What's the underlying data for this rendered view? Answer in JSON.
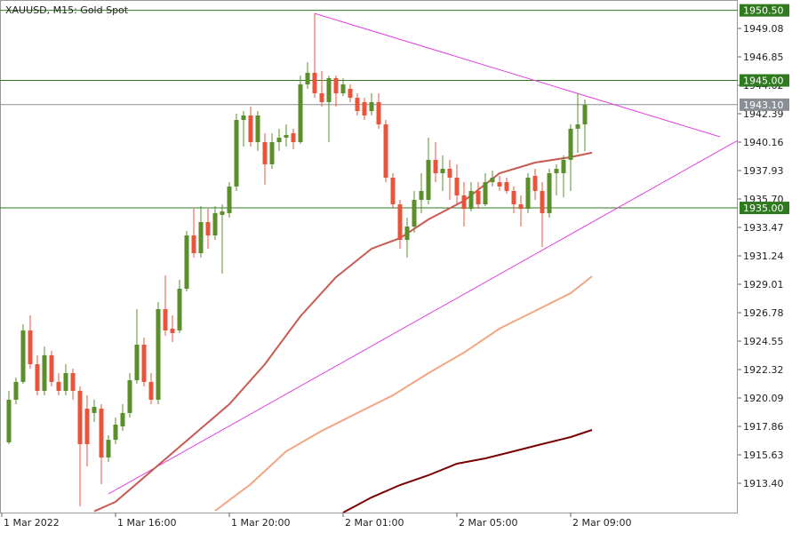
{
  "chart_data": {
    "type": "candlestick",
    "title": "XAUUSD, M15:  Gold Spot",
    "xlim": [
      -1.25,
      102.5
    ],
    "ylim": [
      1911.1,
      1951.31
    ],
    "xticks": [
      {
        "value": -1,
        "label": "1 Mar 2022"
      },
      {
        "value": 15,
        "label": "1 Mar 16:00"
      },
      {
        "value": 31,
        "label": "1 Mar 20:00"
      },
      {
        "value": 47,
        "label": "2 Mar 01:00"
      },
      {
        "value": 63,
        "label": "2 Mar 05:00"
      },
      {
        "value": 79,
        "label": "2 Mar 09:00"
      }
    ],
    "yticks": [
      1949.08,
      1946.85,
      1944.62,
      1942.39,
      1940.16,
      1937.93,
      {
        "value": 1935.7,
        "label": "1935.70"
      },
      1933.47,
      1931.24,
      1929.01,
      1926.78,
      1924.55,
      1922.32,
      1920.09,
      1917.86,
      1915.63,
      {
        "value": 1913.4,
        "label": "1913.40"
      }
    ],
    "up_color": "#5a8f29",
    "down_color": "#e8543a",
    "candles": [
      [
        1916.61,
        1920.65,
        1916.47,
        1919.95
      ],
      [
        1919.95,
        1921.69,
        1919.6,
        1921.35
      ],
      [
        1921.35,
        1925.88,
        1921.2,
        1925.39
      ],
      [
        1925.39,
        1926.57,
        1922.39,
        1922.74
      ],
      [
        1922.74,
        1923.44,
        1920.3,
        1920.65
      ],
      [
        1920.65,
        1924.13,
        1920.3,
        1923.44
      ],
      [
        1923.44,
        1923.79,
        1921.0,
        1921.35
      ],
      [
        1921.35,
        1922.04,
        1920.3,
        1920.65
      ],
      [
        1920.65,
        1922.74,
        1920.3,
        1922.04
      ],
      [
        1922.04,
        1922.39,
        1919.95,
        1920.65
      ],
      [
        1920.65,
        1921.0,
        1911.59,
        1916.47
      ],
      [
        1919.25,
        1920.3,
        1914.72,
        1916.47
      ],
      [
        1918.91,
        1919.95,
        1918.21,
        1919.39
      ],
      [
        1919.25,
        1919.6,
        1913.33,
        1915.42
      ],
      [
        1915.42,
        1917.16,
        1915.07,
        1916.81
      ],
      [
        1916.81,
        1918.56,
        1916.47,
        1918.0
      ],
      [
        1917.86,
        1919.6,
        1917.51,
        1918.91
      ],
      [
        1918.91,
        1922.04,
        1918.56,
        1921.48
      ],
      [
        1921.48,
        1927.06,
        1921.2,
        1924.27
      ],
      [
        1924.27,
        1924.83,
        1921.0,
        1921.35
      ],
      [
        1921.35,
        1922.04,
        1919.6,
        1919.95
      ],
      [
        1919.95,
        1927.62,
        1919.6,
        1927.06
      ],
      [
        1927.06,
        1929.71,
        1924.97,
        1925.39
      ],
      [
        1925.53,
        1926.57,
        1924.48,
        1925.18
      ],
      [
        1925.39,
        1929.36,
        1925.18,
        1928.66
      ],
      [
        1928.66,
        1933.19,
        1928.45,
        1932.84
      ],
      [
        1932.84,
        1934.93,
        1931.1,
        1931.45
      ],
      [
        1931.45,
        1935.14,
        1931.1,
        1933.89
      ],
      [
        1933.89,
        1934.93,
        1931.8,
        1932.84
      ],
      [
        1932.84,
        1935.14,
        1932.49,
        1934.59
      ],
      [
        1934.45,
        1935.28,
        1929.85,
        1934.73
      ],
      [
        1934.59,
        1937.02,
        1934.24,
        1936.68
      ],
      [
        1936.68,
        1942.39,
        1936.33,
        1941.9
      ],
      [
        1941.9,
        1942.6,
        1939.81,
        1942.25
      ],
      [
        1942.25,
        1942.95,
        1939.81,
        1940.16
      ],
      [
        1940.16,
        1942.6,
        1939.46,
        1942.25
      ],
      [
        1940.16,
        1940.86,
        1936.82,
        1938.42
      ],
      [
        1938.42,
        1940.86,
        1938.07,
        1940.16
      ],
      [
        1940.16,
        1941.21,
        1939.46,
        1940.51
      ],
      [
        1940.51,
        1941.55,
        1939.81,
        1940.72
      ],
      [
        1940.86,
        1941.21,
        1939.6,
        1940.16
      ],
      [
        1940.16,
        1945.39,
        1940.02,
        1944.69
      ],
      [
        1944.69,
        1946.43,
        1944.34,
        1945.6
      ],
      [
        1945.6,
        1950.26,
        1943.64,
        1943.99
      ],
      [
        1943.99,
        1945.74,
        1942.95,
        1943.3
      ],
      [
        1943.3,
        1945.39,
        1940.16,
        1945.18
      ],
      [
        1945.18,
        1945.39,
        1942.95,
        1943.99
      ],
      [
        1943.99,
        1945.18,
        1943.78,
        1944.69
      ],
      [
        1944.34,
        1944.69,
        1943.3,
        1943.64
      ],
      [
        1943.64,
        1943.99,
        1942.25,
        1942.6
      ],
      [
        1943.3,
        1943.64,
        1941.9,
        1942.25
      ],
      [
        1942.6,
        1943.99,
        1942.25,
        1943.3
      ],
      [
        1943.3,
        1943.99,
        1941.21,
        1941.55
      ],
      [
        1941.55,
        1941.9,
        1937.02,
        1937.37
      ],
      [
        1937.37,
        1937.72,
        1934.93,
        1935.28
      ],
      [
        1935.28,
        1935.63,
        1931.8,
        1932.49
      ],
      [
        1932.49,
        1934.24,
        1931.1,
        1933.54
      ],
      [
        1933.54,
        1936.33,
        1933.05,
        1935.63
      ],
      [
        1935.63,
        1937.72,
        1934.59,
        1936.33
      ],
      [
        1935.63,
        1940.51,
        1935.28,
        1938.77
      ],
      [
        1938.77,
        1940.16,
        1937.02,
        1937.72
      ],
      [
        1937.72,
        1939.12,
        1936.33,
        1938.07
      ],
      [
        1938.07,
        1938.77,
        1935.63,
        1937.37
      ],
      [
        1937.37,
        1938.42,
        1935.28,
        1935.98
      ],
      [
        1935.98,
        1937.02,
        1933.54,
        1934.93
      ],
      [
        1934.93,
        1937.02,
        1934.73,
        1936.33
      ],
      [
        1936.33,
        1937.02,
        1934.93,
        1935.28
      ],
      [
        1935.28,
        1937.72,
        1935.14,
        1937.02
      ],
      [
        1937.02,
        1937.93,
        1936.68,
        1937.37
      ],
      [
        1937.02,
        1937.51,
        1936.33,
        1936.68
      ],
      [
        1937.02,
        1937.37,
        1936.12,
        1936.33
      ],
      [
        1936.33,
        1936.68,
        1934.59,
        1935.28
      ],
      [
        1935.28,
        1935.98,
        1933.54,
        1934.93
      ],
      [
        1934.93,
        1937.72,
        1934.59,
        1937.37
      ],
      [
        1937.51,
        1938.07,
        1935.63,
        1936.33
      ],
      [
        1936.33,
        1937.02,
        1931.94,
        1934.59
      ],
      [
        1934.59,
        1938.07,
        1934.24,
        1937.72
      ],
      [
        1937.72,
        1938.42,
        1935.98,
        1938.07
      ],
      [
        1937.72,
        1939.12,
        1935.84,
        1938.77
      ],
      [
        1938.77,
        1941.55,
        1936.33,
        1941.21
      ],
      [
        1941.21,
        1943.99,
        1939.32,
        1941.55
      ],
      [
        1941.55,
        1943.51,
        1939.46,
        1943.09
      ]
    ],
    "series": [
      {
        "color": "#c85a50",
        "x": [
          12,
          15,
          24,
          31,
          36,
          41,
          46,
          51,
          55,
          59,
          64,
          69,
          74,
          79,
          82
        ],
        "values": [
          1911.2,
          1911.94,
          1916.26,
          1919.6,
          1922.74,
          1926.5,
          1929.57,
          1931.8,
          1932.63,
          1934.1,
          1935.56,
          1937.72,
          1938.56,
          1938.98,
          1939.33
        ]
      },
      {
        "color": "#f4a582",
        "x": [
          29,
          34,
          39,
          44,
          49,
          54,
          59,
          64,
          69,
          74,
          79,
          82
        ],
        "values": [
          1911.24,
          1913.33,
          1915.91,
          1917.51,
          1918.91,
          1920.3,
          1922.04,
          1923.65,
          1925.53,
          1926.92,
          1928.31,
          1929.64
        ]
      },
      {
        "color": "#7a0000",
        "x": [
          47,
          51,
          55,
          59,
          63,
          67,
          71,
          75,
          79,
          82
        ],
        "values": [
          1911.1,
          1912.29,
          1913.26,
          1914.03,
          1914.93,
          1915.35,
          1915.91,
          1916.47,
          1917.02,
          1917.58
        ]
      }
    ],
    "trendlines": [
      {
        "color": "#e040e0",
        "x": [
          14,
          102.5
        ],
        "values": [
          1912.56,
          1940.3
        ]
      },
      {
        "color": "#e040e0",
        "x": [
          43,
          100
        ],
        "values": [
          1950.26,
          1940.58
        ]
      }
    ],
    "levels": [
      {
        "value": 1950.5,
        "label": "1950.50",
        "color": "#2f7a1f"
      },
      {
        "value": 1945.0,
        "label": "1945.00",
        "color": "#2f7a1f"
      },
      {
        "value": 1943.1,
        "label": "1943.10",
        "color": "#8a8f96"
      },
      {
        "value": 1935.0,
        "label": "1935.00",
        "color": "#2f7a1f"
      }
    ]
  }
}
